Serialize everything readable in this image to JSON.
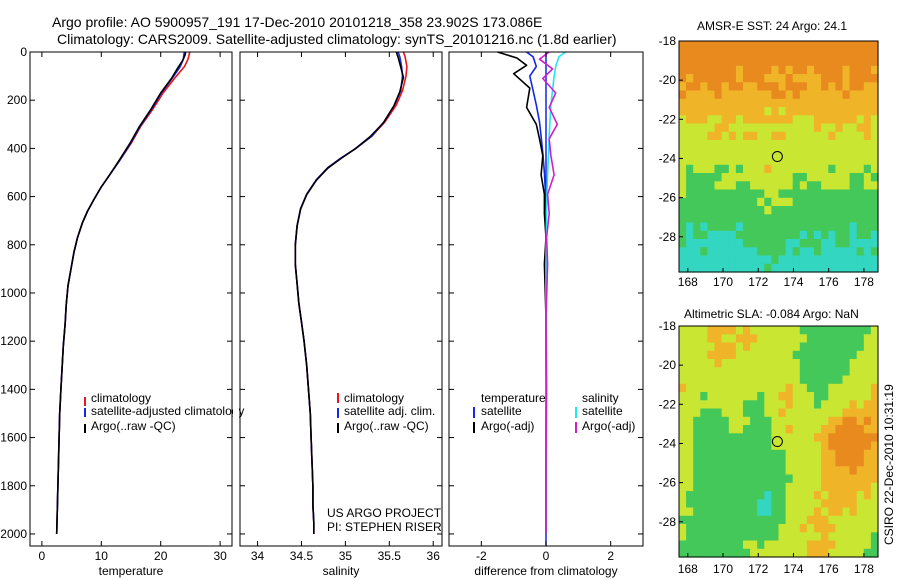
{
  "header": {
    "title_line1": "Argo profile: AO 5900957_191 17-Dec-2010 20101218_358 23.902S 173.086E",
    "title_line2": "Climatology: CARS2009. Satellite-adjusted climatology: synTS_20101216.nc (1.8d earlier)"
  },
  "footer": {
    "project_line1": "US ARGO PROJECT",
    "project_line2": "PI: STEPHEN RISER",
    "stamp": "CSIRO 22-Dec-2010 10:31:19"
  },
  "colors": {
    "climatology": "#e8141e",
    "satellite": "#1428e6",
    "argo": "#000000",
    "sal_satellite": "#22e6f0",
    "sal_argo": "#d21ec8"
  },
  "chart_data": [
    {
      "id": "temperature",
      "type": "line",
      "xlabel": "temperature",
      "ylabel": "",
      "xlim": [
        -2,
        32
      ],
      "ylim": [
        2050,
        0
      ],
      "xticks": [
        0,
        10,
        20,
        30
      ],
      "yticks": [
        0,
        200,
        400,
        600,
        800,
        1000,
        1200,
        1400,
        1600,
        1800,
        2000
      ],
      "series": [
        {
          "name": "climatology",
          "color": "#e8141e",
          "x": [
            24.9,
            24.8,
            24.6,
            24.0,
            22.3,
            20.4,
            18.6,
            16.6,
            15.0,
            13.1,
            11.4,
            10.0,
            8.8,
            7.7,
            6.8,
            6.0,
            5.4,
            4.9,
            4.4,
            4.1,
            3.9,
            3.6,
            3.4,
            3.2,
            3.0,
            2.9,
            2.8,
            2.7,
            2.6,
            2.5
          ],
          "y": [
            0,
            10,
            30,
            60,
            110,
            170,
            240,
            310,
            380,
            450,
            510,
            560,
            610,
            660,
            710,
            770,
            830,
            900,
            970,
            1050,
            1130,
            1220,
            1310,
            1400,
            1500,
            1600,
            1700,
            1800,
            1900,
            2000
          ]
        },
        {
          "name": "satellite-adjusted climatology",
          "color": "#1428e6",
          "x": [
            24.0,
            23.9,
            23.8,
            23.3,
            21.9,
            20.1,
            18.4,
            16.5,
            14.9,
            13.1,
            11.4,
            10.0,
            8.8,
            7.7,
            6.8,
            6.0,
            5.4,
            4.9,
            4.4,
            4.1,
            3.9,
            3.6,
            3.4,
            3.2,
            3.0,
            2.9,
            2.8,
            2.7,
            2.6,
            2.5
          ],
          "y": [
            0,
            10,
            30,
            60,
            110,
            170,
            240,
            310,
            380,
            450,
            510,
            560,
            610,
            660,
            710,
            770,
            830,
            900,
            970,
            1050,
            1130,
            1220,
            1310,
            1400,
            1500,
            1600,
            1700,
            1800,
            1900,
            2000
          ]
        },
        {
          "name": "Argo(..raw -QC)",
          "color": "#000000",
          "x": [
            24.2,
            24.1,
            23.7,
            22.9,
            21.8,
            20.0,
            18.3,
            16.4,
            14.8,
            13.0,
            11.4,
            10.0,
            8.8,
            7.7,
            6.8,
            6.0,
            5.4,
            4.9,
            4.4,
            4.1,
            3.9,
            3.6,
            3.4,
            3.2,
            3.0,
            2.9,
            2.8,
            2.7,
            2.6,
            2.5
          ],
          "y": [
            0,
            12,
            35,
            65,
            110,
            170,
            240,
            310,
            380,
            450,
            510,
            560,
            610,
            660,
            710,
            770,
            830,
            900,
            970,
            1050,
            1130,
            1220,
            1310,
            1400,
            1500,
            1600,
            1700,
            1800,
            1900,
            2000
          ]
        }
      ],
      "legend": {
        "entries": [
          "climatology",
          "satellite-adjusted climatology",
          "Argo(..raw -QC)"
        ]
      }
    },
    {
      "id": "salinity",
      "type": "line",
      "xlabel": "salinity",
      "xlim": [
        33.8,
        36.1
      ],
      "ylim": [
        2050,
        0
      ],
      "xticks": [
        34,
        34.5,
        35,
        35.5,
        36
      ],
      "series": [
        {
          "name": "climatology",
          "color": "#e8141e",
          "x": [
            35.66,
            35.68,
            35.7,
            35.69,
            35.65,
            35.58,
            35.45,
            35.3,
            35.12,
            34.95,
            34.8,
            34.67,
            34.56,
            34.49,
            34.45,
            34.43,
            34.43,
            34.45,
            34.47,
            34.5,
            34.53,
            34.56,
            34.58,
            34.6,
            34.61,
            34.62,
            34.63,
            34.63,
            34.64,
            34.64
          ],
          "y": [
            0,
            20,
            60,
            100,
            160,
            220,
            290,
            350,
            400,
            440,
            480,
            530,
            590,
            650,
            720,
            800,
            880,
            960,
            1040,
            1120,
            1200,
            1300,
            1400,
            1500,
            1600,
            1700,
            1800,
            1880,
            1950,
            2000
          ]
        },
        {
          "name": "satellite adj. clim.",
          "color": "#1428e6",
          "x": [
            35.6,
            35.62,
            35.64,
            35.65,
            35.63,
            35.56,
            35.44,
            35.3,
            35.12,
            34.95,
            34.8,
            34.67,
            34.56,
            34.49,
            34.45,
            34.43,
            34.43,
            34.45,
            34.47,
            34.5,
            34.53,
            34.56,
            34.58,
            34.6,
            34.61,
            34.62,
            34.63,
            34.63,
            34.64,
            34.64
          ],
          "y": [
            0,
            20,
            60,
            100,
            160,
            220,
            290,
            350,
            400,
            440,
            480,
            530,
            590,
            650,
            720,
            800,
            880,
            960,
            1040,
            1120,
            1200,
            1300,
            1400,
            1500,
            1600,
            1700,
            1800,
            1880,
            1950,
            2000
          ]
        },
        {
          "name": "Argo(..raw -QC)",
          "color": "#000000",
          "x": [
            35.58,
            35.6,
            35.63,
            35.66,
            35.62,
            35.55,
            35.43,
            35.28,
            35.11,
            34.95,
            34.8,
            34.67,
            34.56,
            34.49,
            34.45,
            34.43,
            34.43,
            34.45,
            34.47,
            34.5,
            34.53,
            34.56,
            34.58,
            34.6,
            34.61,
            34.62,
            34.63,
            34.63,
            34.64,
            34.64
          ],
          "y": [
            0,
            22,
            62,
            105,
            165,
            225,
            295,
            352,
            402,
            442,
            482,
            532,
            592,
            652,
            722,
            802,
            882,
            962,
            1042,
            1122,
            1202,
            1302,
            1402,
            1502,
            1602,
            1702,
            1802,
            1882,
            1952,
            2000
          ]
        }
      ],
      "legend": {
        "entries": [
          "climatology",
          "satellite adj. clim.",
          "Argo(..raw -QC)"
        ]
      }
    },
    {
      "id": "difference",
      "type": "line",
      "xlabel": "difference from climatology",
      "xlim": [
        -3,
        3
      ],
      "ylim": [
        2050,
        0
      ],
      "xticks": [
        -2,
        0,
        2
      ],
      "series": [
        {
          "name": "temperature satellite",
          "color": "#1428e6",
          "x": [
            -0.6,
            -0.4,
            -0.3,
            -0.5,
            -0.4,
            -0.3,
            -0.2,
            -0.15,
            -0.1,
            -0.05,
            -0.02,
            0,
            0,
            0,
            0,
            0,
            0,
            0
          ],
          "y": [
            0,
            20,
            60,
            100,
            160,
            220,
            290,
            350,
            420,
            500,
            580,
            660,
            760,
            880,
            1100,
            1400,
            1700,
            2000
          ]
        },
        {
          "name": "temperature Argo(-adj)",
          "color": "#000000",
          "x": [
            -1.5,
            -0.9,
            -0.6,
            -1.0,
            -0.5,
            -0.6,
            -0.3,
            -0.2,
            -0.1,
            -0.15,
            -0.05,
            -0.05,
            0,
            -0.05,
            0,
            0,
            0,
            0
          ],
          "y": [
            0,
            25,
            55,
            90,
            150,
            230,
            300,
            360,
            430,
            510,
            590,
            670,
            770,
            880,
            1100,
            1400,
            1700,
            2000
          ]
        },
        {
          "name": "salinity satellite",
          "color": "#22e6f0",
          "x": [
            0.6,
            0.4,
            0.3,
            0.25,
            0.2,
            0.15,
            0.12,
            0.1,
            0.08,
            0.05,
            0.03,
            0.02,
            0.01,
            0,
            0,
            0,
            0,
            0
          ],
          "y": [
            0,
            20,
            60,
            100,
            160,
            220,
            290,
            350,
            420,
            500,
            580,
            660,
            760,
            880,
            1100,
            1400,
            1700,
            2000
          ]
        },
        {
          "name": "salinity Argo(-adj)",
          "color": "#d21ec8",
          "x": [
            0.1,
            -0.2,
            0.2,
            -0.1,
            0.3,
            0.1,
            0.35,
            0.1,
            0.15,
            0.25,
            0.05,
            0.1,
            0.02,
            0.05,
            0,
            0.02,
            0,
            0
          ],
          "y": [
            0,
            30,
            70,
            110,
            170,
            230,
            300,
            360,
            430,
            510,
            590,
            670,
            770,
            880,
            1100,
            1400,
            1700,
            2000
          ]
        }
      ],
      "legend": {
        "temperature_header": "temperature",
        "salinity_header": "salinity",
        "entries": [
          "satellite",
          "Argo(-adj)",
          "satellite",
          "Argo(-adj)"
        ]
      }
    },
    {
      "id": "sst-map",
      "type": "heatmap",
      "title": "AMSR-E SST: 24 Argo: 24.1",
      "xlim": [
        167.5,
        178.8
      ],
      "ylim": [
        -29.8,
        -18
      ],
      "xticks": [
        168,
        170,
        172,
        174,
        176,
        178
      ],
      "yticks": [
        -18,
        -20,
        -22,
        -24,
        -26,
        -28
      ],
      "marker": {
        "lon": 173.086,
        "lat": -23.902
      }
    },
    {
      "id": "sla-map",
      "type": "heatmap",
      "title": "Altimetric SLA: -0.084 Argo: NaN",
      "xlim": [
        167.5,
        178.8
      ],
      "ylim": [
        -29.8,
        -18
      ],
      "xticks": [
        168,
        170,
        172,
        174,
        176,
        178
      ],
      "yticks": [
        -18,
        -20,
        -22,
        -24,
        -26,
        -28
      ],
      "marker": {
        "lon": 173.086,
        "lat": -23.902
      }
    }
  ]
}
